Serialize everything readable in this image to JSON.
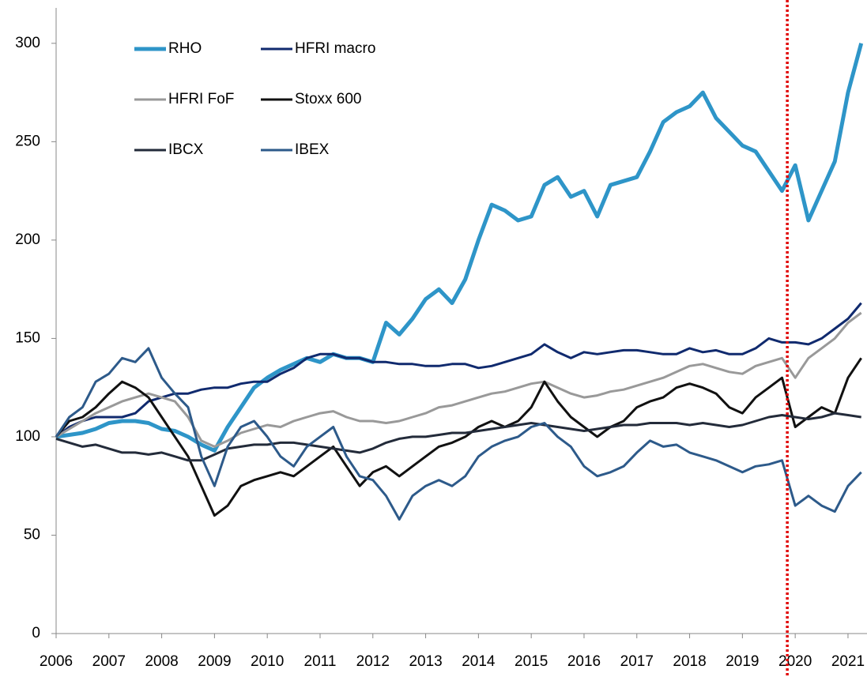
{
  "chart_data": {
    "type": "line",
    "x": [
      2006,
      2006.25,
      2006.5,
      2006.75,
      2007,
      2007.25,
      2007.5,
      2007.75,
      2008,
      2008.25,
      2008.5,
      2008.75,
      2009,
      2009.25,
      2009.5,
      2009.75,
      2010,
      2010.25,
      2010.5,
      2010.75,
      2011,
      2011.25,
      2011.5,
      2011.75,
      2012,
      2012.25,
      2012.5,
      2012.75,
      2013,
      2013.25,
      2013.5,
      2013.75,
      2014,
      2014.25,
      2014.5,
      2014.75,
      2015,
      2015.25,
      2015.5,
      2015.75,
      2016,
      2016.25,
      2016.5,
      2016.75,
      2017,
      2017.25,
      2017.5,
      2017.75,
      2018,
      2018.25,
      2018.5,
      2018.75,
      2019,
      2019.25,
      2019.5,
      2019.75,
      2020,
      2020.25,
      2020.5,
      2020.75,
      2021,
      2021.25
    ],
    "series": [
      {
        "name": "RHO",
        "color": "#2e95c8",
        "width": 5,
        "values": [
          100,
          101,
          102,
          104,
          107,
          108,
          108,
          107,
          104,
          103,
          100,
          96,
          93,
          105,
          115,
          125,
          130,
          134,
          137,
          140,
          138,
          142,
          140,
          140,
          138,
          158,
          152,
          160,
          170,
          175,
          168,
          180,
          200,
          218,
          215,
          210,
          212,
          228,
          232,
          222,
          225,
          212,
          228,
          230,
          232,
          245,
          260,
          265,
          268,
          275,
          262,
          255,
          248,
          245,
          235,
          225,
          238,
          210,
          225,
          240,
          275,
          300
        ]
      },
      {
        "name": "HFRI macro",
        "color": "#102a6e",
        "width": 3,
        "values": [
          100,
          105,
          108,
          110,
          110,
          110,
          112,
          118,
          120,
          122,
          122,
          124,
          125,
          125,
          127,
          128,
          128,
          132,
          135,
          140,
          142,
          142,
          140,
          140,
          138,
          138,
          137,
          137,
          136,
          136,
          137,
          137,
          135,
          136,
          138,
          140,
          142,
          147,
          143,
          140,
          143,
          142,
          143,
          144,
          144,
          143,
          142,
          142,
          145,
          143,
          144,
          142,
          142,
          145,
          150,
          148,
          148,
          147,
          150,
          155,
          160,
          168
        ]
      },
      {
        "name": "HFRI FoF",
        "color": "#999999",
        "width": 3,
        "values": [
          100,
          104,
          108,
          112,
          115,
          118,
          120,
          122,
          120,
          118,
          110,
          98,
          95,
          98,
          102,
          104,
          106,
          105,
          108,
          110,
          112,
          113,
          110,
          108,
          108,
          107,
          108,
          110,
          112,
          115,
          116,
          118,
          120,
          122,
          123,
          125,
          127,
          128,
          125,
          122,
          120,
          121,
          123,
          124,
          126,
          128,
          130,
          133,
          136,
          137,
          135,
          133,
          132,
          136,
          138,
          140,
          130,
          140,
          145,
          150,
          158,
          163
        ]
      },
      {
        "name": "Stoxx 600",
        "color": "#111111",
        "width": 3,
        "values": [
          100,
          108,
          110,
          115,
          122,
          128,
          125,
          120,
          110,
          100,
          90,
          75,
          60,
          65,
          75,
          78,
          80,
          82,
          80,
          85,
          90,
          95,
          85,
          75,
          82,
          85,
          80,
          85,
          90,
          95,
          97,
          100,
          105,
          108,
          105,
          108,
          115,
          128,
          118,
          110,
          105,
          100,
          105,
          108,
          115,
          118,
          120,
          125,
          127,
          125,
          122,
          115,
          112,
          120,
          125,
          130,
          105,
          110,
          115,
          112,
          130,
          140
        ]
      },
      {
        "name": "IBCX",
        "color": "#232b3a",
        "width": 3,
        "values": [
          99,
          97,
          95,
          96,
          94,
          92,
          92,
          91,
          92,
          90,
          88,
          88,
          91,
          94,
          95,
          96,
          96,
          97,
          97,
          96,
          95,
          94,
          93,
          92,
          94,
          97,
          99,
          100,
          100,
          101,
          102,
          102,
          103,
          104,
          105,
          106,
          107,
          106,
          105,
          104,
          103,
          104,
          105,
          106,
          106,
          107,
          107,
          107,
          106,
          107,
          106,
          105,
          106,
          108,
          110,
          111,
          110,
          109,
          110,
          112,
          111,
          110
        ]
      },
      {
        "name": "IBEX",
        "color": "#2d5a8a",
        "width": 3,
        "values": [
          100,
          110,
          115,
          128,
          132,
          140,
          138,
          145,
          130,
          122,
          115,
          90,
          75,
          95,
          105,
          108,
          100,
          90,
          85,
          95,
          100,
          105,
          90,
          80,
          78,
          70,
          58,
          70,
          75,
          78,
          75,
          80,
          90,
          95,
          98,
          100,
          105,
          107,
          100,
          95,
          85,
          80,
          82,
          85,
          92,
          98,
          95,
          96,
          92,
          90,
          88,
          85,
          82,
          85,
          86,
          88,
          65,
          70,
          65,
          62,
          75,
          82
        ]
      }
    ],
    "xlim": [
      2006,
      2021.36
    ],
    "xticks": [
      2006,
      2007,
      2008,
      2009,
      2010,
      2011,
      2012,
      2013,
      2014,
      2015,
      2016,
      2017,
      2018,
      2019,
      2020,
      2021
    ],
    "ylim": [
      0,
      318
    ],
    "yticks": [
      0,
      50,
      100,
      150,
      200,
      250,
      300
    ],
    "grid": false,
    "legend": "upper left",
    "vline": {
      "x": 2019.85,
      "color": "#e00000"
    }
  }
}
